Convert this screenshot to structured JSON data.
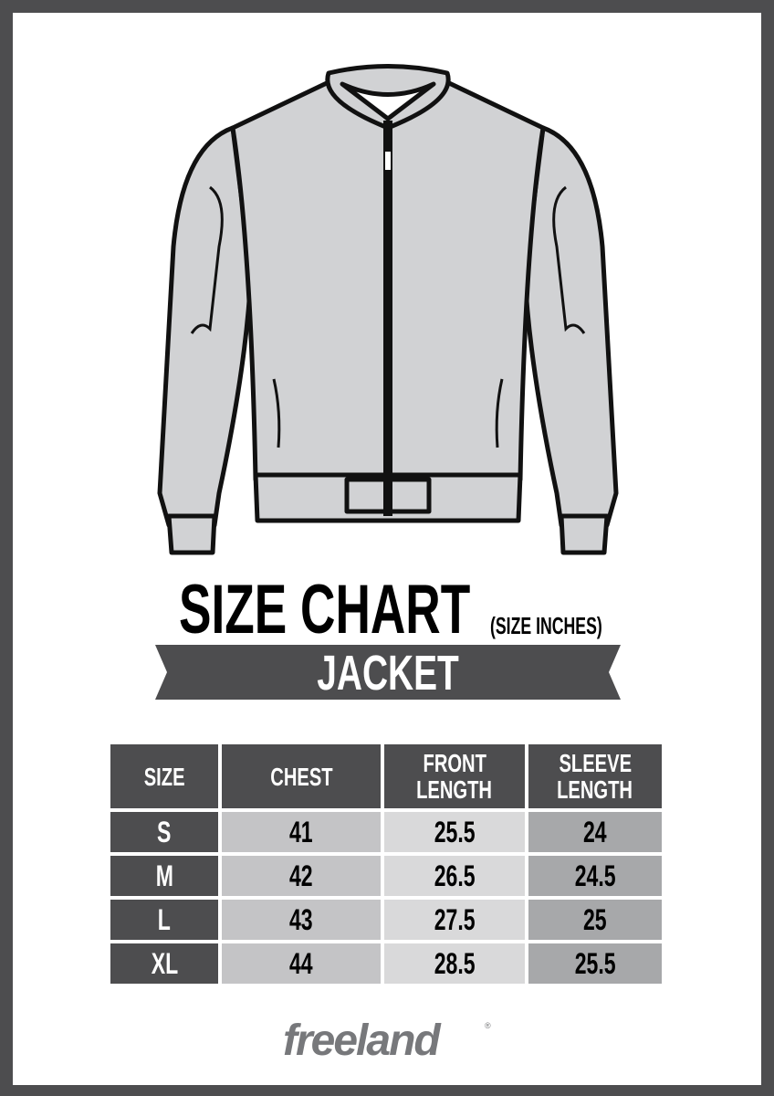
{
  "title": {
    "main": "SIZE CHART",
    "unit_note": "(SIZE INCHES)"
  },
  "banner": {
    "label": "JACKET"
  },
  "table": {
    "headers": [
      [
        "SIZE"
      ],
      [
        "CHEST"
      ],
      [
        "FRONT",
        "LENGTH"
      ],
      [
        "SLEEVE",
        "LENGTH"
      ]
    ],
    "rows": [
      [
        "S",
        "41",
        "25.5",
        "24"
      ],
      [
        "M",
        "42",
        "26.5",
        "24.5"
      ],
      [
        "L",
        "43",
        "27.5",
        "25"
      ],
      [
        "XL",
        "44",
        "28.5",
        "25.5"
      ]
    ]
  },
  "brand": {
    "logo_text": "freeland",
    "registered": "®"
  },
  "colors": {
    "frame": "#4d4d4f",
    "header": "#4d4d4f",
    "chest_col": "#c4c4c6",
    "front_col": "#d9d9da",
    "sleeve_col": "#a7a8aa",
    "logo": "#77787b",
    "jacket_fill": "#d1d2d4"
  }
}
